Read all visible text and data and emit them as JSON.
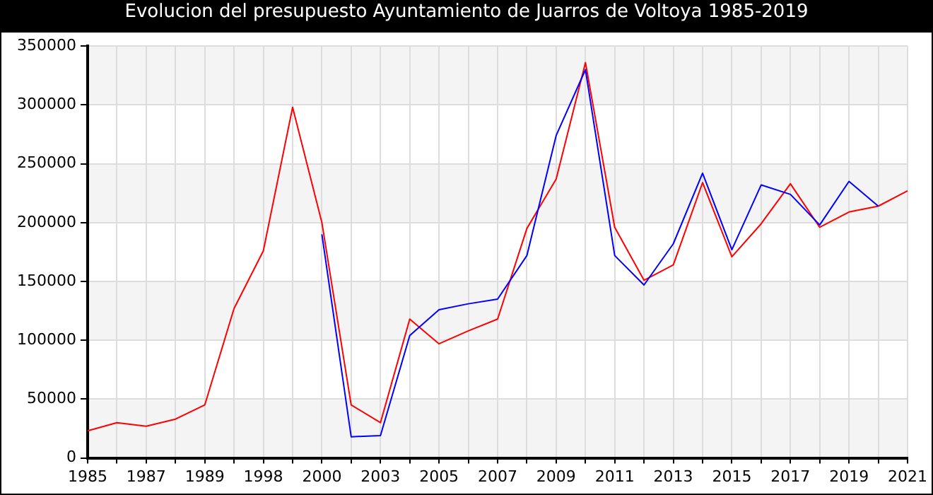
{
  "chart_data": {
    "type": "line",
    "title": "Evolucion del presupuesto Ayuntamiento de Juarros de Voltoya 1985-2019",
    "categories": [
      "1985",
      null,
      "1987",
      null,
      "1989",
      null,
      "1998",
      null,
      "2000",
      null,
      "2003",
      null,
      "2005",
      null,
      "2007",
      null,
      "2009",
      null,
      "2011",
      null,
      "2013",
      null,
      "2015",
      null,
      "2017",
      null,
      "2019",
      null,
      "2021"
    ],
    "series": [
      {
        "color": "#0000ff",
        "values": [
          null,
          null,
          null,
          null,
          null,
          null,
          null,
          null,
          190000,
          18000,
          19000,
          104000,
          126000,
          131000,
          135000,
          172000,
          274000,
          330000,
          172000,
          147000,
          182000,
          242000,
          177000,
          232000,
          224000,
          198000,
          235000,
          214000,
          null
        ]
      },
      {
        "color": "#ff0000",
        "values": [
          23000,
          30000,
          27000,
          33000,
          45000,
          127000,
          176000,
          298000,
          200000,
          45000,
          30000,
          118000,
          97000,
          108000,
          118000,
          195000,
          237000,
          336000,
          196000,
          151000,
          164000,
          234000,
          171000,
          199000,
          233000,
          196000,
          209000,
          214000,
          227000
        ]
      }
    ],
    "ylim": [
      0,
      350000
    ],
    "yticks": [
      0,
      50000,
      100000,
      150000,
      200000,
      250000,
      300000,
      350000
    ],
    "grid": true,
    "legend": false,
    "marker": "none",
    "line_style": "solid"
  }
}
